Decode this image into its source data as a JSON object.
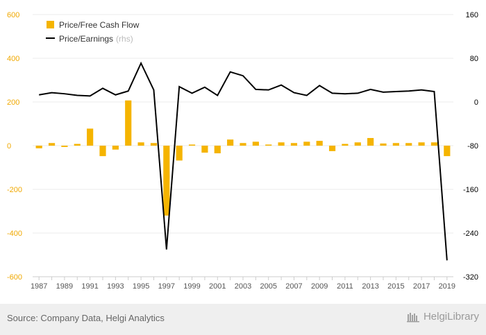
{
  "chart_data": {
    "type": "bar+line",
    "x": [
      "1987",
      "1988",
      "1989",
      "1990",
      "1991",
      "1992",
      "1993",
      "1994",
      "1995",
      "1996",
      "1997",
      "1998",
      "1999",
      "2000",
      "2001",
      "2002",
      "2003",
      "2004",
      "2005",
      "2006",
      "2007",
      "2008",
      "2009",
      "2010",
      "2011",
      "2012",
      "2013",
      "2014",
      "2015",
      "2016",
      "2017",
      "2018",
      "2019"
    ],
    "x_tick_labels": [
      "1987",
      "1989",
      "1991",
      "1993",
      "1995",
      "1997",
      "1999",
      "2001",
      "2003",
      "2005",
      "2007",
      "2009",
      "2011",
      "2013",
      "2015",
      "2017",
      "2019"
    ],
    "series": [
      {
        "name": "Price/Free Cash Flow",
        "type": "bar",
        "axis": "left",
        "color": "#f5b400",
        "values": [
          -12,
          12,
          -6,
          8,
          78,
          -48,
          -18,
          207,
          15,
          12,
          -320,
          -68,
          5,
          -32,
          -35,
          28,
          12,
          18,
          5,
          15,
          12,
          18,
          22,
          -25,
          8,
          15,
          35,
          10,
          12,
          12,
          15,
          15,
          -48
        ]
      },
      {
        "name": "Price/Earnings",
        "name_suffix": "(rhs)",
        "type": "line",
        "axis": "right",
        "color": "#000000",
        "values": [
          13,
          17,
          15,
          12,
          11,
          25,
          13,
          20,
          71,
          22,
          -270,
          28,
          16,
          27,
          12,
          55,
          48,
          23,
          22,
          31,
          17,
          12,
          30,
          16,
          15,
          16,
          23,
          18,
          19,
          20,
          22,
          19,
          -290
        ]
      }
    ],
    "y_left": {
      "min": -600,
      "max": 600,
      "ticks": [
        -600,
        -400,
        -200,
        0,
        200,
        400,
        600
      ],
      "tick_labels": [
        "-600",
        "-400",
        "-200",
        "0",
        "200",
        "400",
        "600"
      ],
      "color": "#f0a800"
    },
    "y_right": {
      "min": -320,
      "max": 160,
      "ticks": [
        -320,
        -240,
        -160,
        -80,
        0,
        80,
        160
      ],
      "tick_labels": [
        "-320",
        "-240",
        "-160",
        "-80",
        "0",
        "80",
        "160"
      ],
      "color": "#000000"
    },
    "grid": true,
    "legend": "top-left"
  },
  "footer": {
    "source": "Source: Company Data, Helgi Analytics",
    "brand": "HelgiLibrary"
  },
  "colors": {
    "bar": "#f5b400",
    "line": "#000000",
    "grid": "#ebebeb",
    "footer_bg": "#efefef"
  }
}
